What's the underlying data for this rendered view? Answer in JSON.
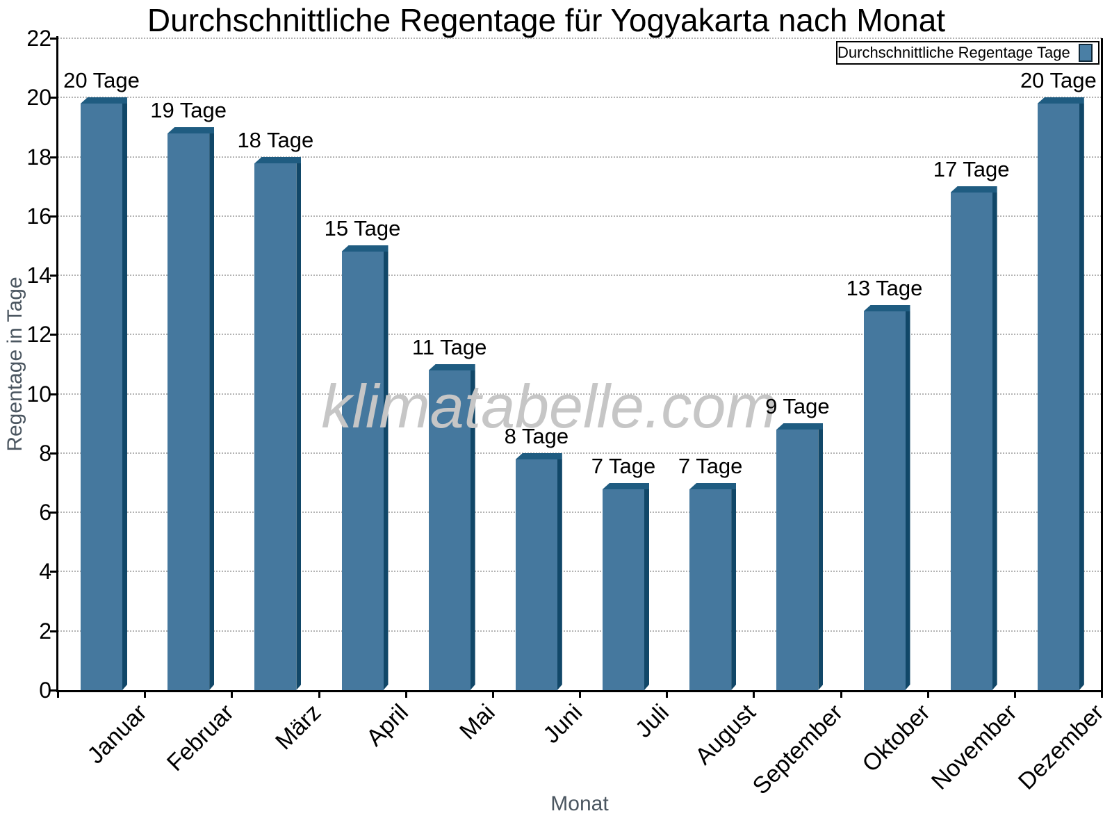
{
  "title": "Durchschnittliche Regentage für Yogyakarta nach Monat",
  "watermark": "klimatabelle.com",
  "chart_data": {
    "type": "bar",
    "title": "Durchschnittliche Regentage für Yogyakarta nach Monat",
    "categories": [
      "Januar",
      "Februar",
      "März",
      "April",
      "Mai",
      "Juni",
      "Juli",
      "August",
      "September",
      "Oktober",
      "November",
      "Dezember"
    ],
    "values": [
      20,
      19,
      18,
      15,
      11,
      8,
      7,
      7,
      9,
      13,
      17,
      20
    ],
    "value_labels": [
      "20 Tage",
      "19 Tage",
      "18 Tage",
      "15 Tage",
      "11 Tage",
      "8 Tage",
      "7 Tage",
      "7 Tage",
      "9 Tage",
      "13 Tage",
      "17 Tage",
      "20 Tage"
    ],
    "xlabel": "Monat",
    "ylabel": "Regentage in Tage",
    "ylim": [
      0,
      22
    ],
    "ytick_step": 2,
    "yticks": [
      0,
      2,
      4,
      6,
      8,
      10,
      12,
      14,
      16,
      18,
      20,
      22
    ],
    "grid": "horizontal-dotted",
    "legend_label": "Durchschnittliche Regentage Tage",
    "legend_position": "top-right",
    "xtick_rotation_deg": 45,
    "colors": {
      "bar_face": "#45789E",
      "bar_side": "#114768",
      "bar_top": "#1F5C81",
      "legend_swatch": "#4A7FA5",
      "axis_text_gray": "#4b5660",
      "gridline": "#b3b3b3",
      "watermark": "#c6c6c6"
    }
  }
}
